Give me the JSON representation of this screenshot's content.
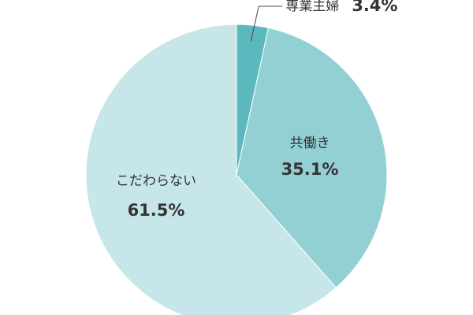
{
  "chart_data": {
    "type": "pie",
    "categories": [
      "専業主婦",
      "共働き",
      "こだわらない"
    ],
    "values": [
      3.4,
      35.1,
      61.5
    ],
    "value_labels": [
      "3.4%",
      "35.1%",
      "61.5%"
    ],
    "colors": [
      "#5bb8bd",
      "#93d0d4",
      "#c7e6ea"
    ]
  }
}
